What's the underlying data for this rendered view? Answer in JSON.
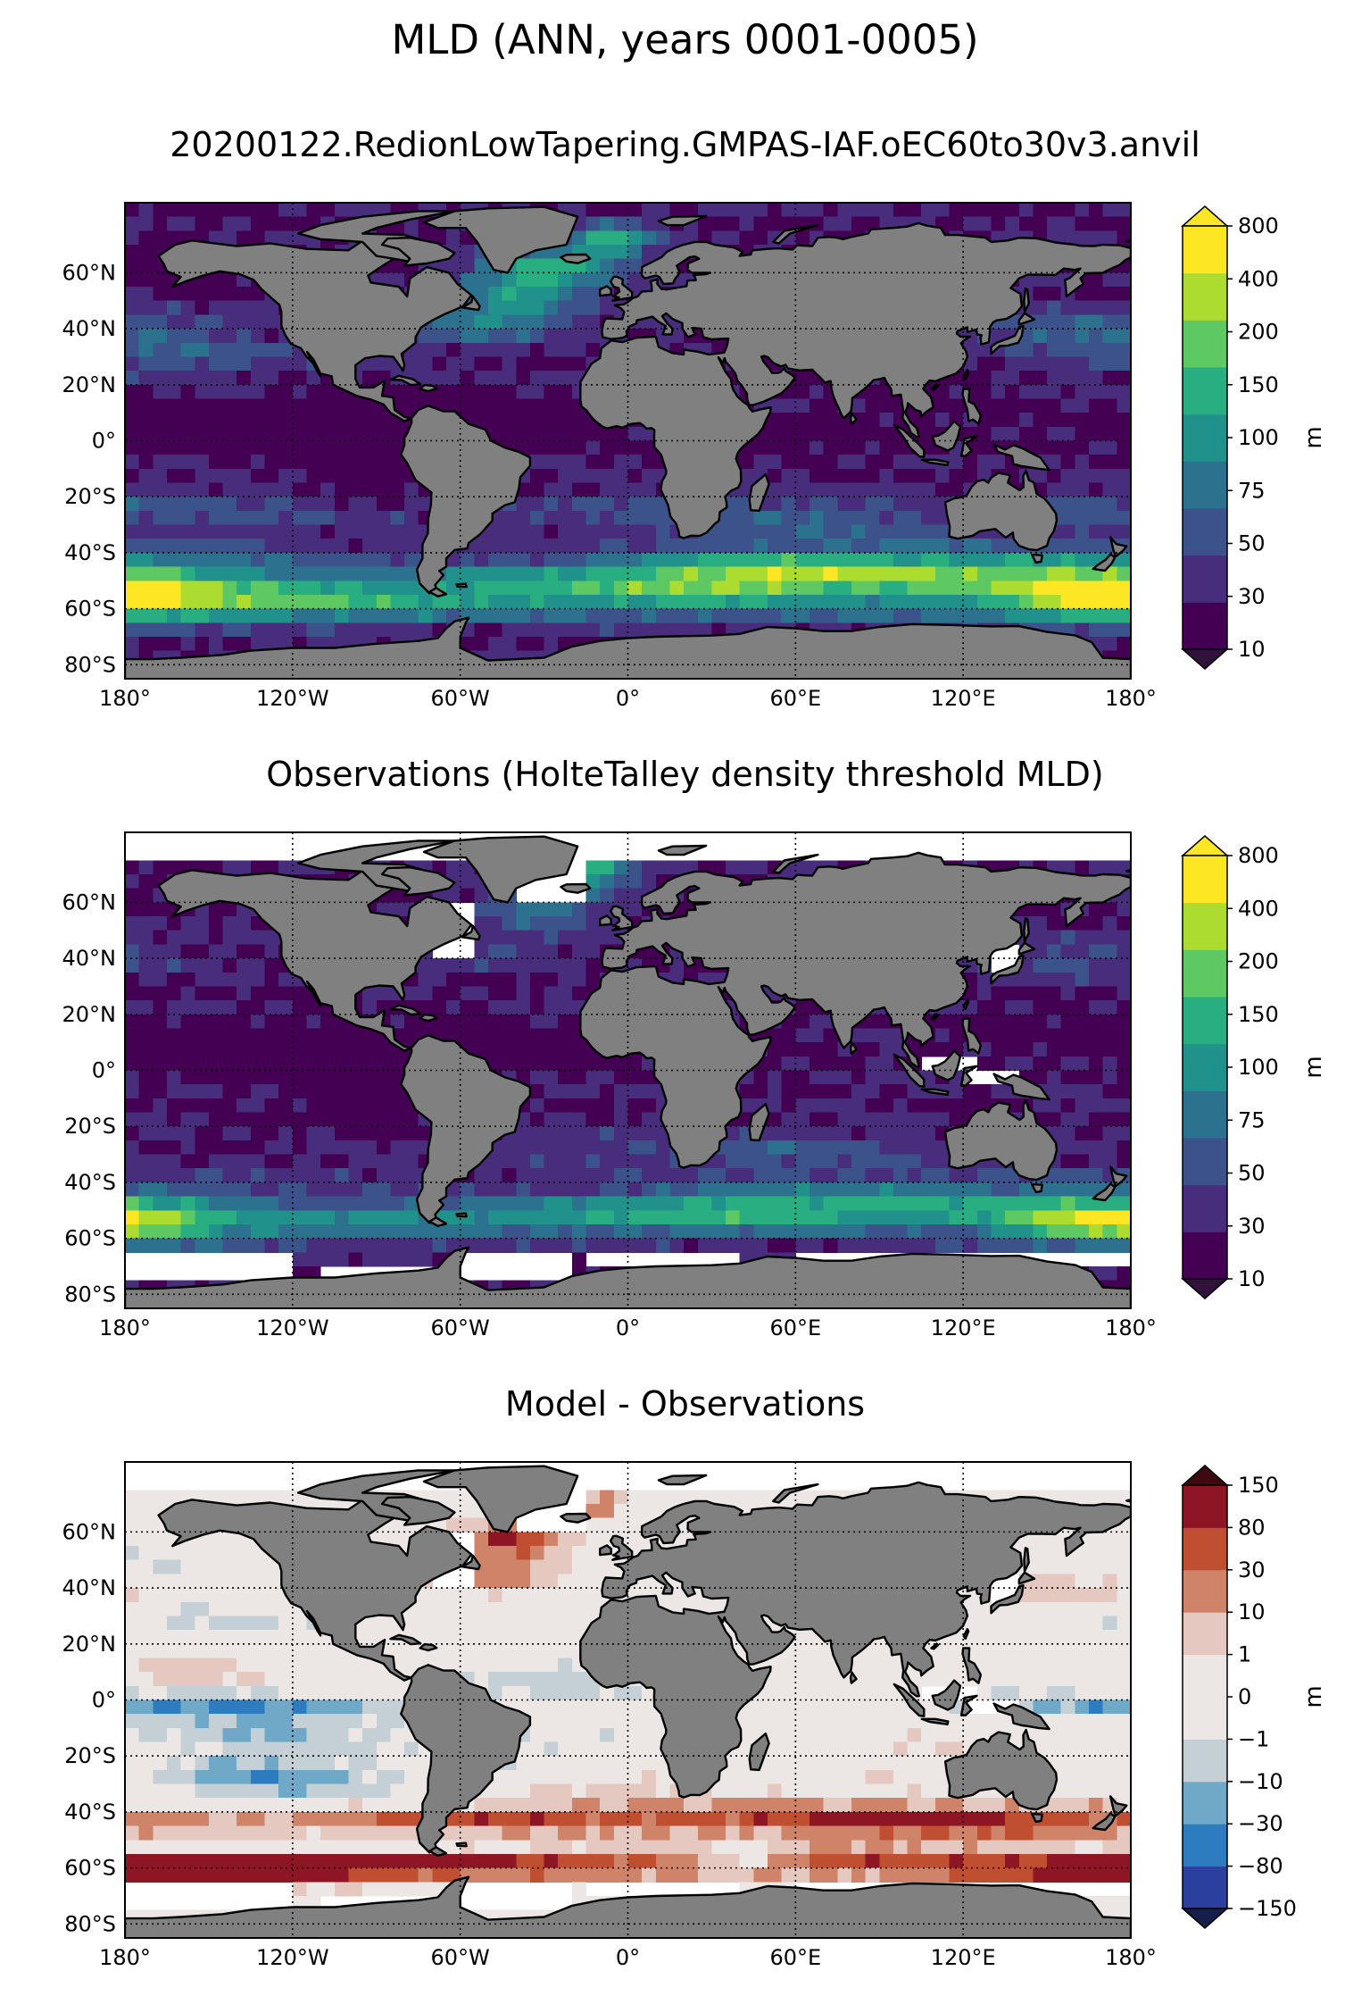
{
  "header": {
    "title": "MLD (ANN, years 0001-0005)",
    "subtitle": "20200122.RedionLowTapering.GMPAS-IAF.oEC60to30v3.anvil"
  },
  "axes": {
    "lat_labels": [
      "60°N",
      "40°N",
      "20°N",
      "0°",
      "20°S",
      "40°S",
      "60°S",
      "80°S"
    ],
    "lat_values": [
      60,
      40,
      20,
      0,
      -20,
      -40,
      -60,
      -80
    ],
    "lon_labels": [
      "180°",
      "120°W",
      "60°W",
      "0°",
      "60°E",
      "120°E",
      "180°"
    ],
    "lon_values": [
      -180,
      -120,
      -60,
      0,
      60,
      120,
      180
    ],
    "lat_range": [
      -85,
      85
    ],
    "lon_range": [
      -180,
      180
    ],
    "grid": "dotted"
  },
  "colors": {
    "land": "#808080",
    "no_data": "#ffffff",
    "coastline": "#000000"
  },
  "panels": [
    {
      "id": "model",
      "title": "",
      "colorbar": {
        "unit": "m",
        "levels": [
          "10",
          "30",
          "50",
          "75",
          "100",
          "150",
          "200",
          "400",
          "800"
        ],
        "colors": [
          "#440154",
          "#472d7b",
          "#3b528b",
          "#2c728e",
          "#21918c",
          "#28ae80",
          "#5ec962",
          "#addc30",
          "#fde725"
        ],
        "under": "#30123b",
        "over": "#fde725"
      }
    },
    {
      "id": "observations",
      "title": "Observations (HolteTalley density threshold MLD)",
      "colorbar": {
        "unit": "m",
        "levels": [
          "10",
          "30",
          "50",
          "75",
          "100",
          "150",
          "200",
          "400",
          "800"
        ],
        "colors": [
          "#440154",
          "#472d7b",
          "#3b528b",
          "#2c728e",
          "#21918c",
          "#28ae80",
          "#5ec962",
          "#addc30",
          "#fde725"
        ],
        "under": "#30123b",
        "over": "#fde725"
      }
    },
    {
      "id": "difference",
      "title": "Model - Observations",
      "colorbar": {
        "unit": "m",
        "levels": [
          "−150",
          "−80",
          "−30",
          "−10",
          "−1",
          "0",
          "1",
          "10",
          "30",
          "80",
          "150"
        ],
        "colors": [
          "#2a3f9e",
          "#2e7cc0",
          "#70a9c8",
          "#c5d0d6",
          "#ece6e5",
          "#ece6e5",
          "#e5c8c0",
          "#cf8469",
          "#c04f31",
          "#8e1524"
        ],
        "under": "#161e4a",
        "over": "#3d0a12"
      }
    }
  ]
}
